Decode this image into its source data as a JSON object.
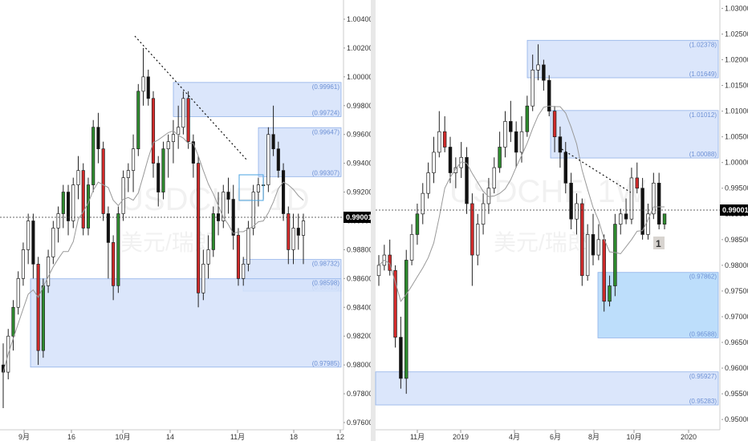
{
  "colors": {
    "up": "#2e8b2e",
    "down": "#d12b2b",
    "wick": "#222222",
    "hollow": "#ffffff",
    "zone_fill": "#d5e2fa",
    "zone_stroke": "#8fb0e8",
    "zone_label": "#6b8fd4",
    "demand_fill": "#b9dcfb",
    "ma_line": "#999999",
    "price_line": "#333333"
  },
  "left": {
    "watermark_symbol": "USDCHF, 1D",
    "watermark_name": "美元/瑞郎",
    "y_axis": {
      "min": 0.9755,
      "max": 1.005,
      "ticks": [
        "1.00400",
        "1.00200",
        "1.00000",
        "0.99800",
        "0.99600",
        "0.99400",
        "0.99200",
        "0.99000",
        "0.98800",
        "0.98600",
        "0.98400",
        "0.98200",
        "0.98000",
        "0.97800",
        "0.97600"
      ]
    },
    "x_axis_ticks": [
      "9月",
      "16",
      "10月",
      "14",
      "11月",
      "18",
      "12"
    ],
    "last_price": "0.99001",
    "zones": [
      {
        "high": 0.99961,
        "low": 0.99724,
        "label_high": "(0.99961)",
        "label_low": "(0.99724)"
      },
      {
        "high": 0.99647,
        "low": 0.99307,
        "label_high": "(0.99647)",
        "label_low": "(0.99307)"
      },
      {
        "high": 0.98732,
        "low": 0.98513,
        "label_high": "(0.98732)",
        "label_low": "(0.98513)"
      },
      {
        "high": 0.98598,
        "low": 0.97985,
        "label_high": "(0.98598)",
        "label_low": "(0.97985)"
      }
    ]
  },
  "right": {
    "watermark_symbol": "USDCHF, 1W",
    "watermark_name": "美元/瑞郎",
    "y_axis": {
      "min": 0.948,
      "max": 1.031,
      "ticks": [
        "1.03000",
        "1.02500",
        "1.02000",
        "1.01500",
        "1.01000",
        "1.00500",
        "1.00000",
        "0.99500",
        "0.99000",
        "0.98500",
        "0.98000",
        "0.97500",
        "0.97000",
        "0.96500",
        "0.96000",
        "0.95500",
        "0.95000"
      ]
    },
    "x_axis_ticks": [
      "11月",
      "2019",
      "4月",
      "6月",
      "8月",
      "10月",
      "2020"
    ],
    "last_price": "0.99001",
    "marker_label": "1",
    "zones": [
      {
        "high": 1.02378,
        "low": 1.01649,
        "label_high": "(1.02378)",
        "label_low": "(1.01649)"
      },
      {
        "high": 1.01012,
        "low": 1.00088,
        "label_high": "(1.01012)",
        "label_low": "(1.00088)"
      },
      {
        "high": 0.97862,
        "low": 0.96588,
        "label_high": "(0.97862)",
        "label_low": "(0.96588)"
      },
      {
        "high": 0.95927,
        "low": 0.95283,
        "label_high": "(0.95927)",
        "label_low": "(0.95283)"
      }
    ]
  },
  "chart_data": [
    {
      "type": "candlestick",
      "title": "",
      "symbol": "USDCHF",
      "timeframe": "1D",
      "ylim": [
        0.9755,
        1.005
      ],
      "last_price": 0.99001,
      "zones": [
        [
          0.99961,
          0.99724
        ],
        [
          0.99647,
          0.99307
        ],
        [
          0.98732,
          0.98513
        ],
        [
          0.98598,
          0.97985
        ]
      ],
      "candles": [
        [
          0.98,
          0.9815,
          0.977,
          0.9795
        ],
        [
          0.9795,
          0.9825,
          0.979,
          0.982
        ],
        [
          0.982,
          0.9845,
          0.981,
          0.984
        ],
        [
          0.984,
          0.9865,
          0.9835,
          0.986
        ],
        [
          0.986,
          0.9885,
          0.9855,
          0.988
        ],
        [
          0.988,
          0.9905,
          0.987,
          0.99
        ],
        [
          0.99,
          0.9905,
          0.986,
          0.987
        ],
        [
          0.987,
          0.9875,
          0.98,
          0.981
        ],
        [
          0.981,
          0.986,
          0.9805,
          0.9855
        ],
        [
          0.9855,
          0.988,
          0.985,
          0.9875
        ],
        [
          0.9875,
          0.99,
          0.987,
          0.9895
        ],
        [
          0.9895,
          0.991,
          0.9885,
          0.9905
        ],
        [
          0.9905,
          0.9925,
          0.9895,
          0.992
        ],
        [
          0.992,
          0.9925,
          0.989,
          0.99
        ],
        [
          0.99,
          0.993,
          0.9895,
          0.9925
        ],
        [
          0.9925,
          0.9945,
          0.9915,
          0.9935
        ],
        [
          0.9935,
          0.994,
          0.989,
          0.9895
        ],
        [
          0.9895,
          0.993,
          0.989,
          0.9925
        ],
        [
          0.9925,
          0.997,
          0.992,
          0.9965
        ],
        [
          0.9965,
          0.9975,
          0.994,
          0.995
        ],
        [
          0.995,
          0.9955,
          0.99,
          0.9905
        ],
        [
          0.9905,
          0.991,
          0.986,
          0.9885
        ],
        [
          0.9885,
          0.989,
          0.9845,
          0.9855
        ],
        [
          0.9855,
          0.991,
          0.985,
          0.9905
        ],
        [
          0.9905,
          0.9935,
          0.99,
          0.993
        ],
        [
          0.993,
          0.994,
          0.992,
          0.9935
        ],
        [
          0.9935,
          0.996,
          0.992,
          0.995
        ],
        [
          0.995,
          0.9995,
          0.9945,
          0.999
        ],
        [
          0.999,
          1.002,
          0.998,
          1.0
        ],
        [
          1.0,
          1.0005,
          0.998,
          0.9985
        ],
        [
          0.9985,
          0.999,
          0.993,
          0.994
        ],
        [
          0.994,
          0.9945,
          0.991,
          0.992
        ],
        [
          0.992,
          0.9955,
          0.9915,
          0.995
        ],
        [
          0.995,
          0.996,
          0.993,
          0.9955
        ],
        [
          0.9955,
          0.997,
          0.994,
          0.996
        ],
        [
          0.996,
          0.998,
          0.995,
          0.9965
        ],
        [
          0.9965,
          0.999,
          0.996,
          0.9985
        ],
        [
          0.9985,
          0.999,
          0.995,
          0.9955
        ],
        [
          0.9955,
          0.996,
          0.993,
          0.994
        ],
        [
          0.994,
          0.9945,
          0.984,
          0.985
        ],
        [
          0.985,
          0.988,
          0.9845,
          0.987
        ],
        [
          0.987,
          0.989,
          0.986,
          0.988
        ],
        [
          0.988,
          0.991,
          0.9875,
          0.9905
        ],
        [
          0.9905,
          0.992,
          0.989,
          0.99
        ],
        [
          0.99,
          0.9925,
          0.9895,
          0.992
        ],
        [
          0.992,
          0.993,
          0.9905,
          0.9915
        ],
        [
          0.9915,
          0.9925,
          0.988,
          0.989
        ],
        [
          0.989,
          0.9895,
          0.9855,
          0.986
        ],
        [
          0.986,
          0.9875,
          0.9855,
          0.987
        ],
        [
          0.987,
          0.99,
          0.9865,
          0.9895
        ],
        [
          0.9895,
          0.9925,
          0.989,
          0.992
        ],
        [
          0.992,
          0.993,
          0.991,
          0.9925
        ],
        [
          0.9925,
          0.993,
          0.9915,
          0.9925
        ],
        [
          0.9925,
          0.9965,
          0.992,
          0.996
        ],
        [
          0.996,
          0.998,
          0.9945,
          0.995
        ],
        [
          0.995,
          0.9955,
          0.993,
          0.9935
        ],
        [
          0.9935,
          0.994,
          0.99,
          0.9905
        ],
        [
          0.9905,
          0.991,
          0.987,
          0.988
        ],
        [
          0.988,
          0.9905,
          0.987,
          0.9895
        ],
        [
          0.9895,
          0.9905,
          0.988,
          0.989
        ],
        [
          0.989,
          0.9905,
          0.987,
          0.99
        ]
      ]
    },
    {
      "type": "candlestick",
      "title": "",
      "symbol": "USDCHF",
      "timeframe": "1W",
      "ylim": [
        0.948,
        1.031
      ],
      "last_price": 0.99001,
      "zones": [
        [
          1.02378,
          1.01649
        ],
        [
          1.01012,
          1.00088
        ],
        [
          0.97862,
          0.96588
        ],
        [
          0.95927,
          0.95283
        ]
      ],
      "candles": [
        [
          0.978,
          0.982,
          0.976,
          0.98
        ],
        [
          0.98,
          0.984,
          0.979,
          0.982
        ],
        [
          0.982,
          0.985,
          0.978,
          0.979
        ],
        [
          0.979,
          0.98,
          0.964,
          0.966
        ],
        [
          0.966,
          0.97,
          0.956,
          0.958
        ],
        [
          0.958,
          0.983,
          0.955,
          0.981
        ],
        [
          0.981,
          0.988,
          0.98,
          0.986
        ],
        [
          0.986,
          0.992,
          0.984,
          0.99
        ],
        [
          0.99,
          0.996,
          0.988,
          0.994
        ],
        [
          0.994,
          1.0,
          0.993,
          0.998
        ],
        [
          0.998,
          1.005,
          0.996,
          1.002
        ],
        [
          1.002,
          1.01,
          1.001,
          1.006
        ],
        [
          1.006,
          1.009,
          1.002,
          1.003
        ],
        [
          1.003,
          1.005,
          0.996,
          0.998
        ],
        [
          0.998,
          1.001,
          0.995,
          0.999
        ],
        [
          0.999,
          1.004,
          0.997,
          1.001
        ],
        [
          1.001,
          1.003,
          0.99,
          0.992
        ],
        [
          0.992,
          0.994,
          0.976,
          0.982
        ],
        [
          0.982,
          0.99,
          0.98,
          0.988
        ],
        [
          0.988,
          0.994,
          0.986,
          0.992
        ],
        [
          0.992,
          0.997,
          0.99,
          0.995
        ],
        [
          0.995,
          1.001,
          0.994,
          0.999
        ],
        [
          0.999,
          1.006,
          0.998,
          1.003
        ],
        [
          1.003,
          1.01,
          1.001,
          1.008
        ],
        [
          1.008,
          1.012,
          1.004,
          1.006
        ],
        [
          1.006,
          1.008,
          0.999,
          1.002
        ],
        [
          1.002,
          1.009,
          1.0,
          1.006
        ],
        [
          1.006,
          1.013,
          1.005,
          1.011
        ],
        [
          1.011,
          1.021,
          1.01,
          1.018
        ],
        [
          1.018,
          1.023,
          1.016,
          1.019
        ],
        [
          1.019,
          1.02,
          1.014,
          1.016
        ],
        [
          1.016,
          1.017,
          1.009,
          1.01
        ],
        [
          1.01,
          1.011,
          1.002,
          1.005
        ],
        [
          1.005,
          1.007,
          0.999,
          1.002
        ],
        [
          1.002,
          1.004,
          0.994,
          0.996
        ],
        [
          0.996,
          0.998,
          0.987,
          0.989
        ],
        [
          0.989,
          0.994,
          0.986,
          0.992
        ],
        [
          0.992,
          0.993,
          0.976,
          0.978
        ],
        [
          0.978,
          0.988,
          0.977,
          0.986
        ],
        [
          0.986,
          0.99,
          0.98,
          0.982
        ],
        [
          0.982,
          0.988,
          0.981,
          0.985
        ],
        [
          0.985,
          0.986,
          0.971,
          0.973
        ],
        [
          0.973,
          0.978,
          0.972,
          0.976
        ],
        [
          0.976,
          0.99,
          0.974,
          0.988
        ],
        [
          0.988,
          0.991,
          0.986,
          0.99
        ],
        [
          0.99,
          0.993,
          0.988,
          0.989
        ],
        [
          0.989,
          0.999,
          0.988,
          0.997
        ],
        [
          0.997,
          1.0,
          0.994,
          0.995
        ],
        [
          0.995,
          0.997,
          0.985,
          0.986
        ],
        [
          0.986,
          0.992,
          0.985,
          0.99
        ],
        [
          0.99,
          0.998,
          0.989,
          0.996
        ],
        [
          0.996,
          0.998,
          0.987,
          0.988
        ],
        [
          0.988,
          0.99,
          0.987,
          0.99
        ]
      ]
    }
  ]
}
